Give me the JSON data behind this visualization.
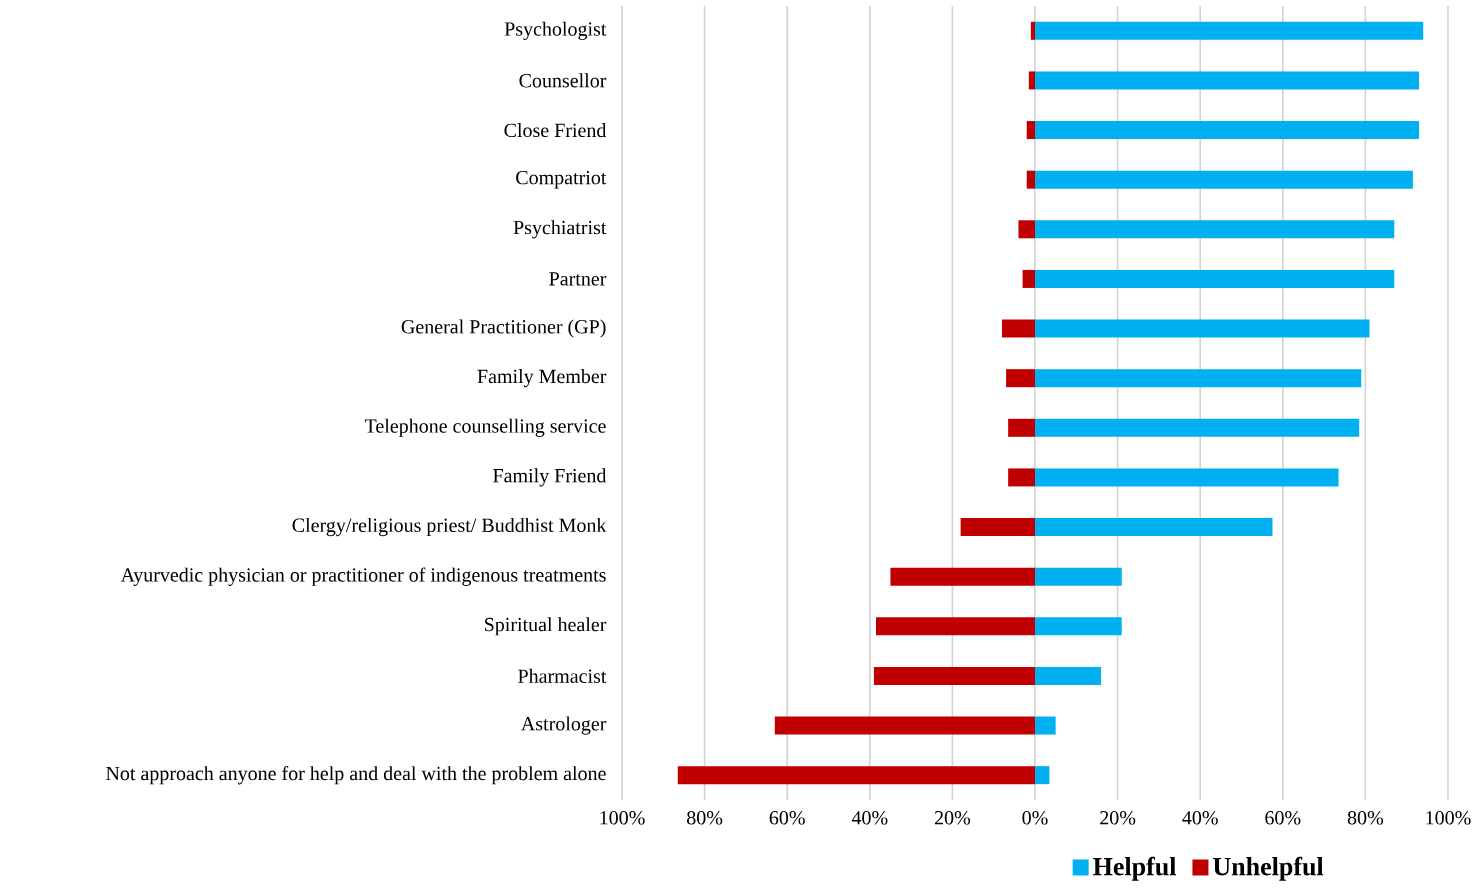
{
  "chart_data": {
    "type": "bar",
    "orientation": "horizontal",
    "categories": [
      "Psychologist",
      "Counsellor",
      "Close Friend",
      "Compatriot",
      "Psychiatrist",
      "Partner",
      "General Practitioner (GP)",
      "Family Member",
      "Telephone counselling service",
      "Family Friend",
      "Clergy/religious priest/ Buddhist Monk",
      "Ayurvedic physician or practitioner of indigenous treatments",
      "Spiritual healer",
      "Pharmacist",
      "Astrologer",
      "Not approach anyone for help and deal with the problem alone"
    ],
    "series": [
      {
        "name": "Helpful",
        "color": "#00b0f0",
        "values": [
          94,
          93,
          93,
          91.5,
          87,
          87,
          81,
          79,
          78.5,
          73.5,
          57.5,
          21,
          21,
          16,
          5,
          3.5
        ]
      },
      {
        "name": "Unhelpful",
        "color": "#c00000",
        "values": [
          -1,
          -1.5,
          -2,
          -2,
          -4,
          -3,
          -8,
          -7,
          -6.5,
          -6.5,
          -18,
          -35,
          -38.5,
          -39,
          -63,
          -86.5
        ]
      }
    ],
    "xlim": [
      -100,
      100
    ],
    "xticks": [
      {
        "value": -100,
        "label": "100%"
      },
      {
        "value": -80,
        "label": "80%"
      },
      {
        "value": -60,
        "label": "60%"
      },
      {
        "value": -40,
        "label": "40%"
      },
      {
        "value": -20,
        "label": "20%"
      },
      {
        "value": 0,
        "label": "0%"
      },
      {
        "value": 20,
        "label": "20%"
      },
      {
        "value": 40,
        "label": "40%"
      },
      {
        "value": 60,
        "label": "60%"
      },
      {
        "value": 80,
        "label": "80%"
      },
      {
        "value": 100,
        "label": "100%"
      }
    ],
    "grid": "x",
    "legend": "bottom",
    "stacked": true
  }
}
